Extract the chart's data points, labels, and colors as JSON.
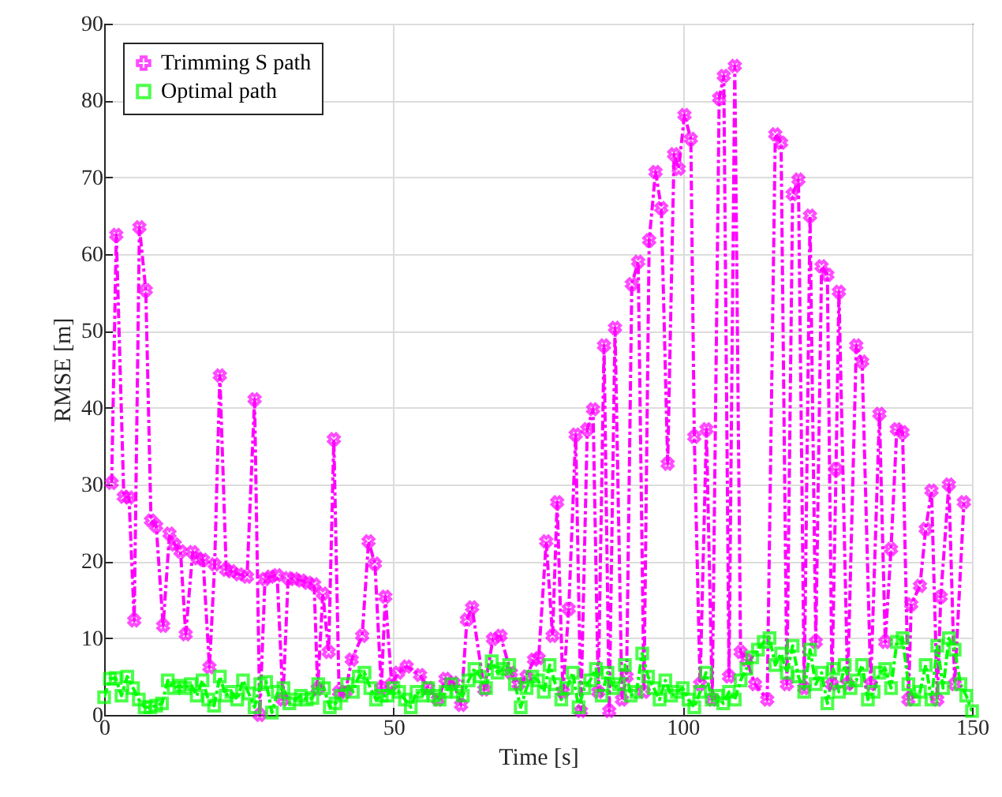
{
  "chart_data": {
    "type": "line",
    "xlabel": "Time [s]",
    "ylabel": "RMSE [m]",
    "xlim": [
      0,
      150
    ],
    "xticks": [
      0,
      50,
      100,
      150
    ],
    "ylim": [
      0,
      90
    ],
    "yticks": [
      0,
      10,
      20,
      30,
      40,
      50,
      60,
      70,
      80,
      90
    ],
    "grid": true,
    "legend": "top left",
    "line_style": "dashed",
    "series": [
      {
        "name": "Trimming S path",
        "color": "#ff00ff",
        "marker": "cross",
        "x": [
          1.3,
          2.1,
          3.4,
          4.3,
          5.2,
          6.1,
          7.2,
          8.1,
          9,
          10.2,
          11.3,
          12.2,
          13.2,
          14.1,
          15.3,
          16.2,
          17.1,
          18.2,
          19.1,
          20,
          21.1,
          22,
          23.3,
          24.7,
          26,
          26.9,
          27.8,
          28.7,
          29.9,
          30.9,
          31.8,
          32.9,
          34.1,
          35.2,
          36.3,
          36.9,
          37.8,
          38.8,
          39.7,
          40.6,
          41.7,
          42.8,
          44.6,
          45.7,
          46.8,
          47.9,
          48.6,
          49.7,
          50.8,
          52.3,
          54.6,
          56,
          57.7,
          59,
          60.4,
          61.7,
          62.7,
          63.6,
          65.7,
          67.2,
          68.5,
          70.3,
          71.6,
          73,
          74.3,
          75.1,
          76.4,
          77.5,
          78.3,
          79.3,
          80.3,
          81.5,
          82.4,
          83.5,
          84.5,
          85.4,
          86.4,
          87.3,
          88.3,
          89.5,
          90.3,
          91.2,
          92.3,
          93.3,
          94.2,
          95.3,
          96.3,
          97.4,
          98.5,
          99.3,
          100.3,
          101.4,
          102,
          103,
          104.1,
          105.1,
          106.3,
          107.1,
          108,
          109,
          110,
          111,
          112.5,
          114.6,
          116,
          117,
          118,
          119,
          120,
          121,
          122,
          123,
          124,
          125,
          125.8,
          126.5,
          127,
          128.5,
          130,
          131,
          132.5,
          134,
          135,
          136,
          137,
          138,
          139,
          139.5,
          141,
          142,
          143,
          144,
          144.6,
          146,
          147,
          148.6
        ],
        "values": [
          30.2,
          62.5,
          28.4,
          28.3,
          12.3,
          63.5,
          55.3,
          25.3,
          24.6,
          11.6,
          23.6,
          22.2,
          21.3,
          10.5,
          21.2,
          20.4,
          20.2,
          6.2,
          19.6,
          44.2,
          18.9,
          18.7,
          18.3,
          18,
          41.1,
          0,
          17.7,
          18,
          18.2,
          2,
          17.8,
          17.7,
          17.5,
          17.2,
          17,
          3.4,
          15.8,
          8.2,
          35.9,
          3,
          3,
          7.2,
          10.3,
          22.6,
          19.7,
          3.5,
          15.4,
          4,
          5.5,
          6.3,
          5.2,
          3.5,
          2,
          4.7,
          4.2,
          1.3,
          12.4,
          14,
          3.3,
          9.9,
          10.3,
          5.5,
          4,
          5,
          7.2,
          7.4,
          22.6,
          10.3,
          27.7,
          3,
          13.8,
          36.5,
          0.5,
          37.2,
          39.8,
          3,
          48.1,
          0.5,
          50.4,
          2,
          5,
          56.1,
          59,
          3,
          61.8,
          70.7,
          66,
          32.7,
          73,
          71.1,
          78.1,
          75,
          36.2,
          4,
          37.2,
          2,
          80.3,
          83.2,
          5,
          84.5,
          8.2,
          7.2,
          4,
          2,
          75.6,
          74.5,
          4,
          67.8,
          69.7,
          3.5,
          65,
          9.5,
          58.4,
          57.3,
          4,
          32,
          55.1,
          4,
          48.1,
          46,
          4,
          39.2,
          9.5,
          21.6,
          37.2,
          36.8,
          2,
          14.4,
          16.8,
          24.2,
          29.2,
          2,
          15.4,
          30,
          4,
          27.7
        ]
      },
      {
        "name": "Optimal path",
        "color": "#00ff00",
        "marker": "square",
        "x": [
          0,
          1,
          2,
          3,
          4,
          5,
          6,
          7,
          8,
          9,
          10,
          11,
          12,
          13,
          14,
          15,
          16,
          17,
          18,
          19,
          20,
          21,
          22,
          23,
          24,
          25,
          26,
          27,
          28,
          29,
          30,
          31,
          32,
          33,
          34,
          35,
          36,
          37,
          38,
          39,
          40,
          41,
          42,
          43,
          44,
          45,
          46,
          47,
          48,
          49,
          50,
          51,
          52,
          53,
          54,
          55,
          56,
          57,
          58,
          59,
          60,
          61,
          62,
          63,
          64,
          65,
          66,
          67,
          68,
          69,
          70,
          71,
          72,
          73,
          74,
          75,
          76,
          77,
          78,
          79,
          80,
          81,
          82,
          83,
          84,
          85,
          86,
          87,
          88,
          89,
          90,
          91,
          92,
          93,
          94,
          95,
          96,
          97,
          98,
          99,
          100,
          101,
          102,
          103,
          104,
          105,
          106,
          107,
          108,
          109,
          110,
          111,
          112,
          113,
          114,
          115,
          116,
          117,
          118,
          119,
          120,
          121,
          122,
          123,
          124,
          125,
          126,
          127,
          128,
          129,
          130,
          131,
          132,
          133,
          134,
          135,
          136,
          137,
          138,
          139,
          140,
          141,
          142,
          143,
          144,
          145,
          146,
          147,
          148,
          149,
          150
        ],
        "values": [
          2.3,
          4.7,
          4.8,
          2.5,
          5,
          3.5,
          2,
          1,
          1,
          1.2,
          1.5,
          4.5,
          3.5,
          3.8,
          3.5,
          4,
          2.5,
          4.5,
          2,
          1.2,
          5,
          2.5,
          3,
          2,
          4.5,
          2.8,
          1,
          4,
          4.3,
          0.3,
          3,
          3.5,
          1.5,
          2,
          2.5,
          2,
          2.2,
          4,
          3.5,
          1,
          1.5,
          2.5,
          4,
          3,
          5,
          5.5,
          3.5,
          2,
          2.5,
          2.5,
          3.5,
          3,
          2,
          1,
          3,
          2.5,
          3.5,
          2.5,
          2,
          3,
          4,
          3,
          2.5,
          4.5,
          6,
          5,
          3.5,
          7,
          5.5,
          6,
          6.5,
          4,
          1,
          3.5,
          5,
          4.5,
          3,
          6.5,
          4,
          2,
          3.5,
          5.5,
          1,
          3.5,
          4.5,
          6,
          2.5,
          5.5,
          3.5,
          4,
          6.5,
          2.5,
          3,
          8,
          5,
          3.5,
          2,
          4.5,
          2.5,
          3,
          3.5,
          2,
          1,
          3,
          5.5,
          2,
          2.5,
          1.5,
          3,
          2,
          4.5,
          6,
          7.5,
          8.5,
          9.5,
          10,
          6.5,
          8,
          5.5,
          9,
          5,
          3,
          8.5,
          4,
          5.5,
          1.5,
          6,
          3,
          6.5,
          3.5,
          4.5,
          6.5,
          2,
          3,
          5.5,
          6,
          3.5,
          9.5,
          10,
          4,
          2,
          3,
          6.5,
          2,
          9,
          3.5,
          10,
          8.5,
          4,
          2.5,
          0.5
        ]
      }
    ]
  }
}
